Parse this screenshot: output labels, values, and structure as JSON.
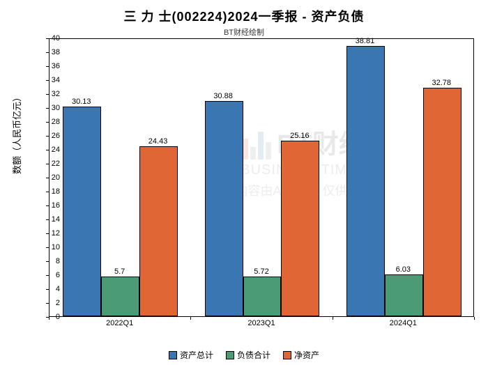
{
  "chart": {
    "type": "bar",
    "title": "三 力 士(002224)2024一季报 - 资产负债",
    "title_fontsize": 18,
    "subtitle": "BT财经绘制",
    "subtitle_fontsize": 11,
    "ylabel": "数额（人民币亿元）",
    "ylabel_fontsize": 13,
    "categories": [
      "2022Q1",
      "2023Q1",
      "2024Q1"
    ],
    "series": [
      {
        "name": "资产总计",
        "color": "#3a76b1",
        "values": [
          30.13,
          30.88,
          38.81
        ]
      },
      {
        "name": "负债合计",
        "color": "#4b9b77",
        "values": [
          5.7,
          5.72,
          6.03
        ]
      },
      {
        "name": "净资产",
        "color": "#e06636",
        "values": [
          24.43,
          25.16,
          32.78
        ]
      }
    ],
    "ylim": [
      0,
      40
    ],
    "ytick_step": 2,
    "background_color": "#ffffff",
    "border_color": "#000000",
    "bar_border_color": "#000000",
    "tick_fontsize": 11,
    "label_fontsize": 11,
    "bar_width_ratio": 0.27,
    "group_gap_ratio": 0.12,
    "watermark": {
      "brand_cn": "BT财经",
      "brand_en": "BUSINESS TIMES",
      "disclaimer": "内容由AI生成，仅供参考",
      "opacity": 0.13
    },
    "legend_fontsize": 12
  }
}
